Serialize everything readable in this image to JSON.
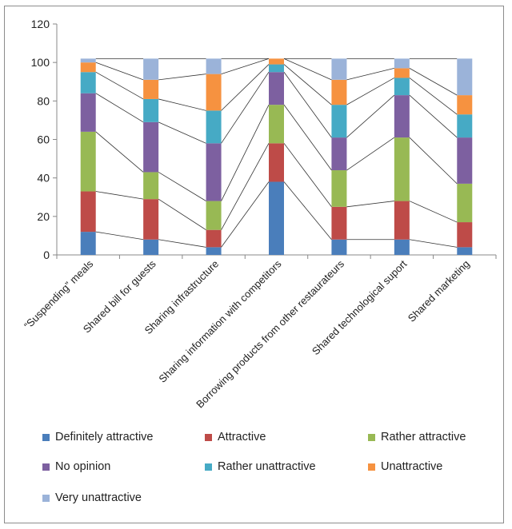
{
  "chart_data": {
    "type": "bar",
    "stacked": true,
    "series_lines": true,
    "categories": [
      "“Suspending” meals",
      "Shared bill for guests",
      "Sharing infrastructure",
      "Sharing information with competitors",
      "Borrowing products from other restaurateurs",
      "Shared technological suport",
      "Shared marketing"
    ],
    "series": [
      {
        "name": "Definitely attractive",
        "color": "#4a7ebb",
        "values": [
          12,
          8,
          4,
          38,
          8,
          8,
          4
        ]
      },
      {
        "name": "Attractive",
        "color": "#be4b48",
        "values": [
          21,
          21,
          9,
          20,
          17,
          20,
          13
        ]
      },
      {
        "name": "Rather attractive",
        "color": "#98b954",
        "values": [
          31,
          14,
          15,
          20,
          19,
          33,
          20
        ]
      },
      {
        "name": "No opinion",
        "color": "#7d60a0",
        "values": [
          20,
          26,
          30,
          17,
          17,
          22,
          24
        ]
      },
      {
        "name": "Rather unattractive",
        "color": "#46aac5",
        "values": [
          11,
          12,
          17,
          4,
          17,
          9,
          12
        ]
      },
      {
        "name": "Unattractive",
        "color": "#f69240",
        "values": [
          5,
          10,
          19,
          3,
          13,
          5,
          10
        ]
      },
      {
        "name": "Very unattractive",
        "color": "#9bb3d9",
        "values": [
          2,
          11,
          8,
          0,
          11,
          5,
          19
        ]
      }
    ],
    "ylim": [
      0,
      120
    ],
    "yticks": [
      0,
      20,
      40,
      60,
      80,
      100,
      120
    ],
    "grid": false,
    "legend_position": "bottom"
  }
}
